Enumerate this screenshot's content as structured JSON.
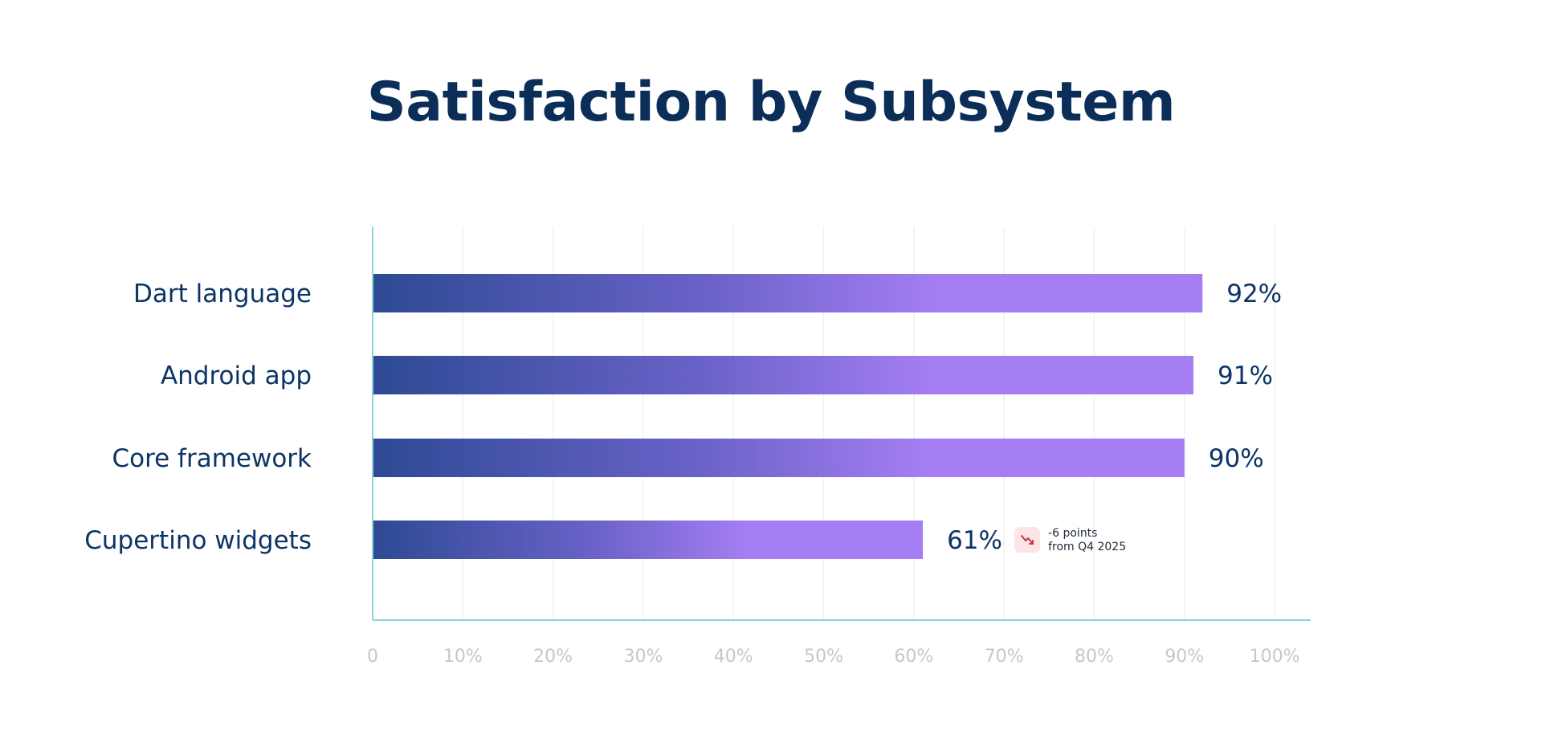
{
  "chart_data": {
    "type": "bar",
    "orientation": "horizontal",
    "title": "Satisfaction by Subsystem",
    "categories": [
      "Dart language",
      "Android app",
      "Core framework",
      "Cupertino widgets"
    ],
    "values": [
      92,
      91,
      90,
      61
    ],
    "value_labels": [
      "92%",
      "91%",
      "90%",
      "61%"
    ],
    "xlim": [
      0,
      100
    ],
    "x_ticks": [
      "0",
      "10%",
      "20%",
      "30%",
      "40%",
      "50%",
      "60%",
      "70%",
      "80%",
      "90%",
      "100%"
    ],
    "grid": true,
    "annotations": [
      {
        "category": "Cupertino widgets",
        "icon": "trend-down-icon",
        "lines": [
          "-6 points",
          "from Q4 2025"
        ]
      }
    ],
    "colors": {
      "bar_start": "#2d4a94",
      "bar_mid": "#6a62c8",
      "bar_end": "#a47ef2",
      "axis": "#8ed3dc",
      "grid": "#f0f1f3",
      "title": "#0b2e59",
      "label": "#0d3466",
      "tick": "#c4c7cc",
      "annotation_bg": "#fde4e6",
      "annotation_icon": "#c0394a"
    }
  }
}
